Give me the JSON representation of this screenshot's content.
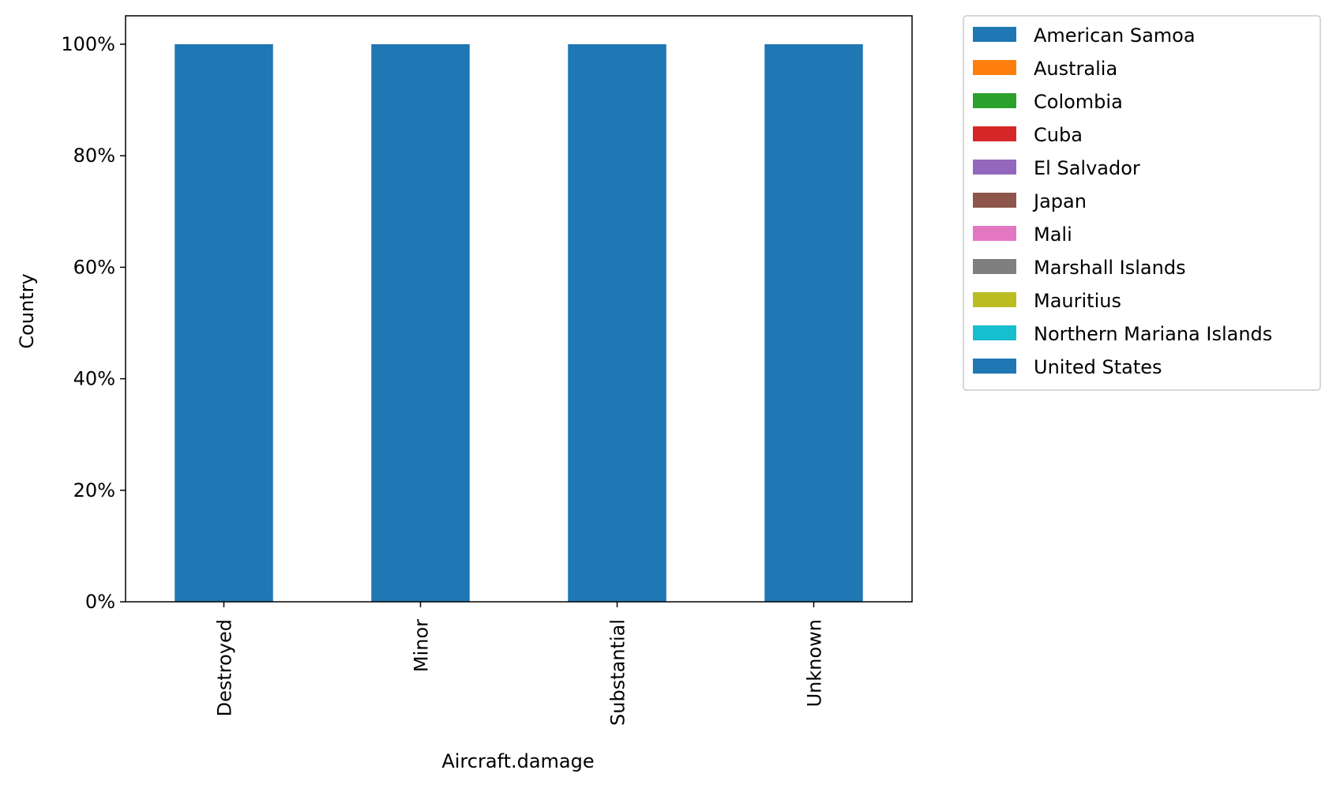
{
  "chart_data": {
    "type": "bar",
    "stacked": true,
    "categories": [
      "Destroyed",
      "Minor",
      "Substantial",
      "Unknown"
    ],
    "xlabel": "Aircraft.damage",
    "ylabel": "Country",
    "ylim": [
      0,
      100
    ],
    "y_ticks": [
      "0%",
      "20%",
      "40%",
      "60%",
      "80%",
      "100%"
    ],
    "grid": false,
    "legend_position": "outside-top-right",
    "series": [
      {
        "name": "American Samoa",
        "color": "#1f77b4",
        "values": [
          0,
          0,
          0,
          0
        ]
      },
      {
        "name": "Australia",
        "color": "#ff7f0e",
        "values": [
          0,
          0,
          0,
          0
        ]
      },
      {
        "name": "Colombia",
        "color": "#2ca02c",
        "values": [
          0,
          0,
          0,
          0
        ]
      },
      {
        "name": "Cuba",
        "color": "#d62728",
        "values": [
          0,
          0,
          0,
          0
        ]
      },
      {
        "name": "El Salvador",
        "color": "#9467bd",
        "values": [
          0,
          0,
          0,
          0
        ]
      },
      {
        "name": "Japan",
        "color": "#8c564b",
        "values": [
          0,
          0,
          0,
          0
        ]
      },
      {
        "name": "Mali",
        "color": "#e377c2",
        "values": [
          0,
          0,
          0,
          0
        ]
      },
      {
        "name": "Marshall Islands",
        "color": "#7f7f7f",
        "values": [
          0,
          0,
          0,
          0
        ]
      },
      {
        "name": "Mauritius",
        "color": "#bcbd22",
        "values": [
          0,
          0,
          0,
          0
        ]
      },
      {
        "name": "Northern Mariana Islands",
        "color": "#17becf",
        "values": [
          0,
          0,
          0,
          0
        ]
      },
      {
        "name": "United States",
        "color": "#1f77b4",
        "values": [
          100,
          100,
          100,
          100
        ]
      }
    ]
  }
}
